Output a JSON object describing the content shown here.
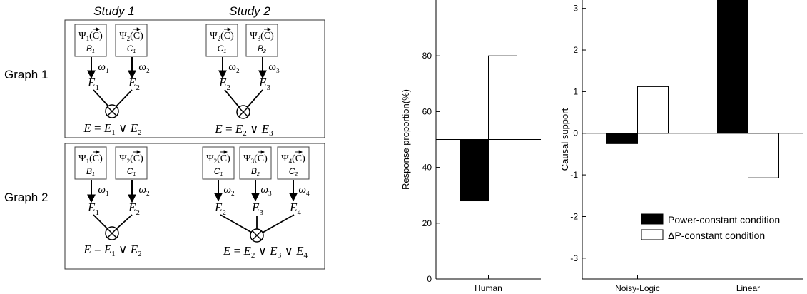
{
  "diagram": {
    "study_labels": [
      "Study 1",
      "Study 2"
    ],
    "graph_labels": [
      "Graph 1",
      "Graph 2"
    ],
    "nodes": {
      "psi1": {
        "fn": "Ψ",
        "sub": "1",
        "arg": "(C)"
      },
      "psi2": {
        "fn": "Ψ",
        "sub": "2",
        "arg": "(C)"
      },
      "psi3": {
        "fn": "Ψ",
        "sub": "3",
        "arg": "(C)"
      },
      "psi4": {
        "fn": "Ψ",
        "sub": "4",
        "arg": "(C)"
      },
      "b1": {
        "base": "B",
        "sub": "1"
      },
      "b2": {
        "base": "B",
        "sub": "2"
      },
      "c1": {
        "base": "C",
        "sub": "1"
      },
      "c2": {
        "base": "C",
        "sub": "2"
      },
      "w1": {
        "base": "ω",
        "sub": "1"
      },
      "w2": {
        "base": "ω",
        "sub": "2"
      },
      "w3": {
        "base": "ω",
        "sub": "3"
      },
      "w4": {
        "base": "ω",
        "sub": "4"
      },
      "e1": {
        "base": "E",
        "sub": "1"
      },
      "e2": {
        "base": "E",
        "sub": "2"
      },
      "e3": {
        "base": "E",
        "sub": "3"
      },
      "e4": {
        "base": "E",
        "sub": "4"
      }
    },
    "combine_symbol": "⊗",
    "formulas": {
      "f12": {
        "lhs": "E",
        "eq": " = ",
        "terms": [
          {
            "base": "E",
            "sub": "1"
          },
          {
            "base": "E",
            "sub": "2"
          }
        ],
        "op": " ∨ "
      },
      "f23": {
        "lhs": "E",
        "eq": " = ",
        "terms": [
          {
            "base": "E",
            "sub": "2"
          },
          {
            "base": "E",
            "sub": "3"
          }
        ],
        "op": " ∨ "
      },
      "f234": {
        "lhs": "E",
        "eq": " = ",
        "terms": [
          {
            "base": "E",
            "sub": "2"
          },
          {
            "base": "E",
            "sub": "3"
          },
          {
            "base": "E",
            "sub": "4"
          }
        ],
        "op": " ∨ "
      }
    }
  },
  "chart_data": [
    {
      "type": "bar",
      "categories": [
        "Human"
      ],
      "series": [
        {
          "name": "Power-constant condition",
          "values": [
            28
          ],
          "color": "#000000"
        },
        {
          "name": "ΔP-constant condition",
          "values": [
            80
          ],
          "color": "#ffffff"
        }
      ],
      "baseline": 50,
      "ylabel": "Response proportion(%)",
      "xlabel": "",
      "ylim": [
        0,
        100
      ],
      "yticks": [
        0,
        20,
        40,
        60,
        80
      ],
      "grid": false
    },
    {
      "type": "bar",
      "categories": [
        "Noisy-Logic",
        "Linear"
      ],
      "series": [
        {
          "name": "Power-constant condition",
          "values": [
            -0.25,
            3.3
          ],
          "color": "#000000"
        },
        {
          "name": "ΔP-constant condition",
          "values": [
            1.12,
            -1.07
          ],
          "color": "#ffffff"
        }
      ],
      "baseline": 0,
      "ylabel": "Causal support",
      "xlabel": "",
      "ylim": [
        -3.5,
        3.2
      ],
      "yticks": [
        -3,
        -2,
        -1,
        0,
        1,
        2,
        3
      ],
      "legend_placement": "bottom-right",
      "grid": false
    }
  ]
}
